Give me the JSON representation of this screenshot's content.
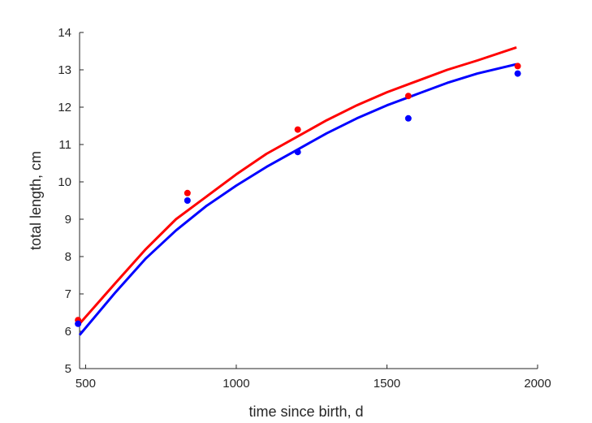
{
  "chart_data": {
    "type": "scatter",
    "title": "",
    "xlabel": "time since birth, d",
    "ylabel": "total length, cm",
    "xlim": [
      480,
      2000
    ],
    "ylim": [
      5,
      14
    ],
    "xticks": [
      500,
      1000,
      1500,
      2000
    ],
    "yticks": [
      5,
      6,
      7,
      8,
      9,
      10,
      11,
      12,
      13,
      14
    ],
    "grid": false,
    "legend": "none",
    "series": [
      {
        "color": "#ff0000",
        "points": {
          "x": [
            475,
            838,
            1204,
            1571,
            1934
          ],
          "y": [
            6.3,
            9.7,
            11.4,
            12.3,
            13.1
          ]
        },
        "curve": {
          "x": [
            480,
            600,
            700,
            800,
            900,
            1000,
            1100,
            1200,
            1300,
            1400,
            1500,
            1600,
            1700,
            1800,
            1930
          ],
          "y": [
            6.2,
            7.3,
            8.2,
            9.0,
            9.6,
            10.2,
            10.75,
            11.2,
            11.65,
            12.05,
            12.4,
            12.7,
            13.0,
            13.25,
            13.6
          ]
        }
      },
      {
        "color": "#0000ff",
        "points": {
          "x": [
            475,
            838,
            1204,
            1571,
            1934
          ],
          "y": [
            6.2,
            9.5,
            10.8,
            11.7,
            12.9
          ]
        },
        "curve": {
          "x": [
            480,
            600,
            700,
            800,
            900,
            1000,
            1100,
            1200,
            1300,
            1400,
            1500,
            1600,
            1700,
            1800,
            1930
          ],
          "y": [
            5.9,
            7.05,
            7.95,
            8.7,
            9.35,
            9.9,
            10.4,
            10.85,
            11.3,
            11.7,
            12.05,
            12.35,
            12.65,
            12.9,
            13.15
          ]
        }
      }
    ]
  }
}
